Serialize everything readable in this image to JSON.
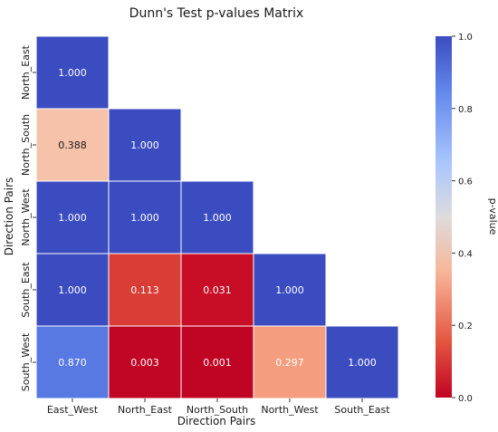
{
  "chart_data": {
    "type": "heatmap",
    "title": "Dunn's Test p-values Matrix",
    "xlabel": "Direction Pairs",
    "ylabel": "Direction Pairs",
    "x_categories": [
      "East_West",
      "North_East",
      "North_South",
      "North_West",
      "South_East"
    ],
    "y_categories": [
      "North_East",
      "North_South",
      "North_West",
      "South_East",
      "South_West"
    ],
    "values": [
      [
        1.0,
        null,
        null,
        null,
        null
      ],
      [
        0.388,
        1.0,
        null,
        null,
        null
      ],
      [
        1.0,
        1.0,
        1.0,
        null,
        null
      ],
      [
        1.0,
        0.113,
        0.031,
        1.0,
        null
      ],
      [
        0.87,
        0.003,
        0.001,
        0.297,
        1.0
      ]
    ],
    "value_labels": [
      [
        "1.000",
        "",
        "",
        "",
        ""
      ],
      [
        "0.388",
        "1.000",
        "",
        "",
        ""
      ],
      [
        "1.000",
        "1.000",
        "1.000",
        "",
        ""
      ],
      [
        "1.000",
        "0.113",
        "0.031",
        "1.000",
        ""
      ],
      [
        "0.870",
        "0.003",
        "0.001",
        "0.297",
        "1.000"
      ]
    ],
    "colorbar": {
      "label": "p-value",
      "range": [
        0.0,
        1.0
      ],
      "ticks": [
        0.0,
        0.2,
        0.4,
        0.6,
        0.8,
        1.0
      ],
      "tick_labels": [
        "0.0",
        "0.2",
        "0.4",
        "0.6",
        "0.8",
        "1.0"
      ],
      "colormap": "coolwarm_r"
    },
    "mask": "upper-triangle"
  }
}
